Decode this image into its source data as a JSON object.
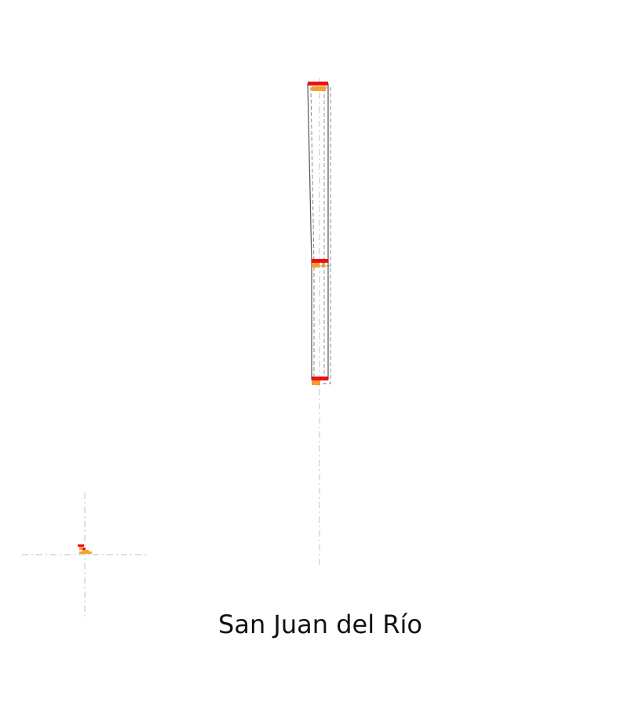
{
  "caption": "San Juan del Río",
  "colors": {
    "outline": "#444444",
    "dash_outline": "#8a8a8a",
    "guide": "#cccccc",
    "marker_red": "#ee1111",
    "marker_orange": "#f5a030"
  }
}
